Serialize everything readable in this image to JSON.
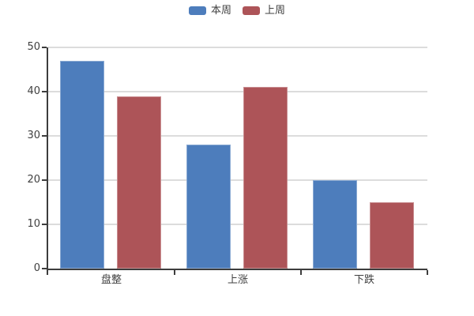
{
  "chart_data": {
    "type": "bar",
    "title": "",
    "categories": [
      "盘整",
      "上涨",
      "下跌"
    ],
    "series": [
      {
        "name": "本周",
        "color": "#4d7dbc",
        "values": [
          47,
          28,
          20
        ]
      },
      {
        "name": "上周",
        "color": "#ad5458",
        "values": [
          39,
          41,
          15
        ]
      }
    ],
    "xlabel": "",
    "ylabel": "",
    "ylim": [
      0,
      50
    ],
    "yticks": [
      0,
      10,
      20,
      30,
      40,
      50
    ],
    "grid": true,
    "legend_position": "top-center"
  },
  "colors": {
    "background": "#ffffff",
    "axis": "#3d3d3d",
    "gridline": "#dcdcdc",
    "label_text": "#404040"
  }
}
